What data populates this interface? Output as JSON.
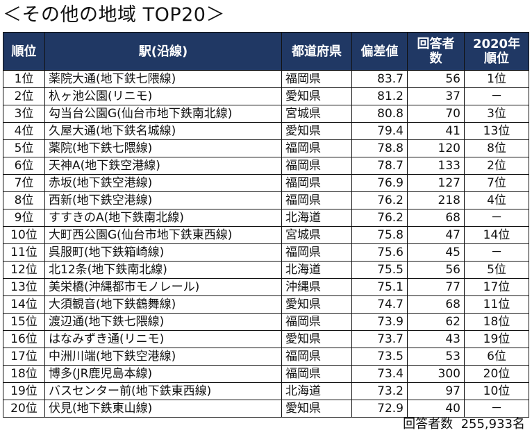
{
  "title": "＜その他の地域 TOP20＞",
  "columns": {
    "rank": "順位",
    "station": "駅(沿線)",
    "prefecture": "都道府県",
    "score": "偏差値",
    "respondents": "回答者数",
    "prev_rank": "2020年順位"
  },
  "rows": [
    {
      "rank": "1位",
      "station": "薬院大通(地下鉄七隈線)",
      "prefecture": "福岡県",
      "score": "83.7",
      "respondents": "56",
      "prev_rank": "1位"
    },
    {
      "rank": "2位",
      "station": "杁ヶ池公園(リニモ)",
      "prefecture": "愛知県",
      "score": "81.2",
      "respondents": "37",
      "prev_rank": "－"
    },
    {
      "rank": "3位",
      "station": "勾当台公園G(仙台市地下鉄南北線)",
      "prefecture": "宮城県",
      "score": "80.8",
      "respondents": "70",
      "prev_rank": "3位"
    },
    {
      "rank": "4位",
      "station": "久屋大通(地下鉄名城線)",
      "prefecture": "愛知県",
      "score": "79.4",
      "respondents": "41",
      "prev_rank": "13位"
    },
    {
      "rank": "5位",
      "station": "薬院(地下鉄七隈線)",
      "prefecture": "福岡県",
      "score": "78.8",
      "respondents": "120",
      "prev_rank": "8位"
    },
    {
      "rank": "6位",
      "station": "天神A(地下鉄空港線)",
      "prefecture": "福岡県",
      "score": "78.7",
      "respondents": "133",
      "prev_rank": "2位"
    },
    {
      "rank": "7位",
      "station": "赤坂(地下鉄空港線)",
      "prefecture": "福岡県",
      "score": "76.9",
      "respondents": "127",
      "prev_rank": "7位"
    },
    {
      "rank": "8位",
      "station": "西新(地下鉄空港線)",
      "prefecture": "福岡県",
      "score": "76.2",
      "respondents": "218",
      "prev_rank": "4位"
    },
    {
      "rank": "9位",
      "station": "すすきのA(地下鉄南北線)",
      "prefecture": "北海道",
      "score": "76.2",
      "respondents": "68",
      "prev_rank": "－"
    },
    {
      "rank": "10位",
      "station": "大町西公園G(仙台市地下鉄東西線)",
      "prefecture": "宮城県",
      "score": "75.8",
      "respondents": "47",
      "prev_rank": "14位"
    },
    {
      "rank": "11位",
      "station": "呉服町(地下鉄箱崎線)",
      "prefecture": "福岡県",
      "score": "75.6",
      "respondents": "45",
      "prev_rank": "－"
    },
    {
      "rank": "12位",
      "station": "北12条(地下鉄南北線)",
      "prefecture": "北海道",
      "score": "75.5",
      "respondents": "56",
      "prev_rank": "5位"
    },
    {
      "rank": "13位",
      "station": "美栄橋(沖縄都市モノレール)",
      "prefecture": "沖縄県",
      "score": "75.1",
      "respondents": "77",
      "prev_rank": "17位"
    },
    {
      "rank": "14位",
      "station": "大須観音(地下鉄鶴舞線)",
      "prefecture": "愛知県",
      "score": "74.7",
      "respondents": "68",
      "prev_rank": "11位"
    },
    {
      "rank": "15位",
      "station": "渡辺通(地下鉄七隈線)",
      "prefecture": "福岡県",
      "score": "73.9",
      "respondents": "62",
      "prev_rank": "18位"
    },
    {
      "rank": "16位",
      "station": "はなみずき通(リニモ)",
      "prefecture": "愛知県",
      "score": "73.7",
      "respondents": "43",
      "prev_rank": "19位"
    },
    {
      "rank": "17位",
      "station": "中洲川端(地下鉄空港線)",
      "prefecture": "福岡県",
      "score": "73.5",
      "respondents": "53",
      "prev_rank": "6位"
    },
    {
      "rank": "18位",
      "station": "博多(JR鹿児島本線)",
      "prefecture": "福岡県",
      "score": "73.4",
      "respondents": "300",
      "prev_rank": "20位"
    },
    {
      "rank": "19位",
      "station": "バスセンター前(地下鉄東西線)",
      "prefecture": "北海道",
      "score": "73.2",
      "respondents": "97",
      "prev_rank": "10位"
    },
    {
      "rank": "20位",
      "station": "伏見(地下鉄東山線)",
      "prefecture": "愛知県",
      "score": "72.9",
      "respondents": "40",
      "prev_rank": "－"
    }
  ],
  "footer": {
    "respondents_label": "回答者数",
    "respondents_total": "255,933名"
  },
  "colors": {
    "header_bg": "#203864",
    "header_text": "#ffffff",
    "border": "#111111"
  }
}
